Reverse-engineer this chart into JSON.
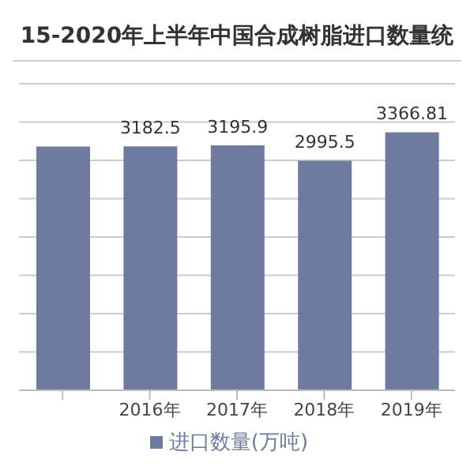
{
  "chart_data": {
    "type": "bar",
    "title": "15-2020年上半年中国合成树脂进口数量统",
    "categories": [
      null,
      "2016年",
      "2017年",
      "2018年",
      "2019年"
    ],
    "series": [
      {
        "name": "进口数量(万吨)",
        "color": "#6e7aa0",
        "values": [
          3180,
          3182.5,
          3195.9,
          2995.5,
          3366.81
        ],
        "value_labels": [
          null,
          "3182.5",
          "3195.9",
          "2995.5",
          "3366.81"
        ]
      }
    ],
    "ylim": [
      0,
      4000
    ],
    "yticks": [
      {
        "value": 0,
        "label": null
      },
      {
        "value": 500,
        "label": null
      },
      {
        "value": 1000,
        "label": null
      },
      {
        "value": 1500,
        "label": null
      },
      {
        "value": 2000,
        "label": null
      },
      {
        "value": 2500,
        "label": null
      },
      {
        "value": 3000,
        "label": null
      },
      {
        "value": 3500,
        "label": null
      },
      {
        "value": 4000,
        "label": null
      }
    ],
    "grid": "y",
    "tick_labels": "x",
    "legend": "bottom"
  }
}
